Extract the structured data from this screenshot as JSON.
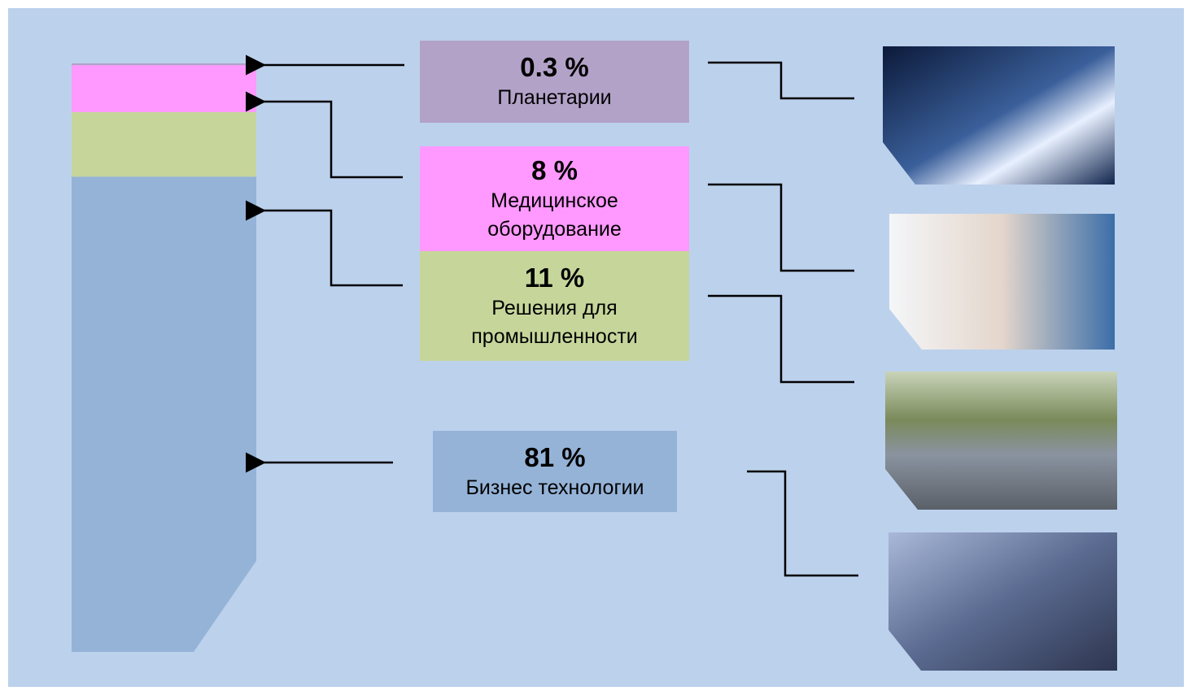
{
  "chart_data": {
    "type": "stacked-bar",
    "categories": [
      "Планетарии",
      "Медицинское оборудование",
      "Решения для промышленности",
      "Бизнес технологии"
    ],
    "values": [
      0.3,
      8,
      11,
      81
    ],
    "value_labels": [
      "0.3 %",
      "8 %",
      "11 %",
      "81 %"
    ],
    "colors": [
      "#b3a2c8",
      "#ff99ff",
      "#c6d69b",
      "#95b3d7"
    ]
  }
}
